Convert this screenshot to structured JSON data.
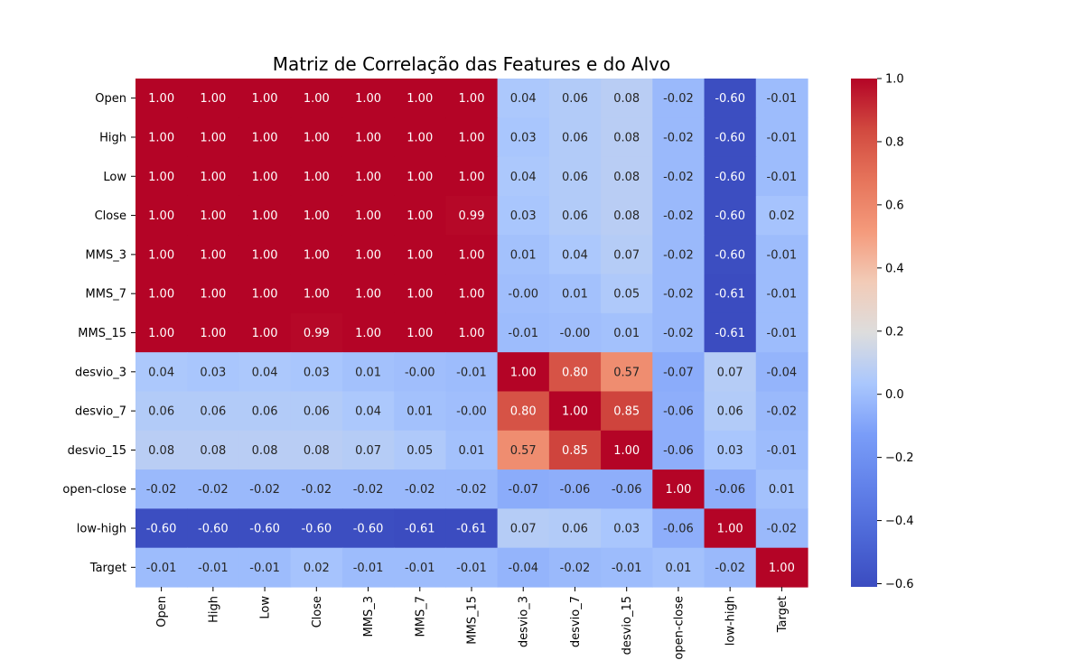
{
  "chart_data": {
    "type": "heatmap",
    "title": "Matriz de Correlação das Features e do Alvo",
    "xlabel": "",
    "ylabel": "",
    "labels": [
      "Open",
      "High",
      "Low",
      "Close",
      "MMS_3",
      "MMS_7",
      "MMS_15",
      "desvio_3",
      "desvio_7",
      "desvio_15",
      "open-close",
      "low-high",
      "Target"
    ],
    "values": [
      [
        1.0,
        1.0,
        1.0,
        1.0,
        1.0,
        1.0,
        1.0,
        0.04,
        0.06,
        0.08,
        -0.02,
        -0.6,
        -0.01
      ],
      [
        1.0,
        1.0,
        1.0,
        1.0,
        1.0,
        1.0,
        1.0,
        0.03,
        0.06,
        0.08,
        -0.02,
        -0.6,
        -0.01
      ],
      [
        1.0,
        1.0,
        1.0,
        1.0,
        1.0,
        1.0,
        1.0,
        0.04,
        0.06,
        0.08,
        -0.02,
        -0.6,
        -0.01
      ],
      [
        1.0,
        1.0,
        1.0,
        1.0,
        1.0,
        1.0,
        0.99,
        0.03,
        0.06,
        0.08,
        -0.02,
        -0.6,
        0.02
      ],
      [
        1.0,
        1.0,
        1.0,
        1.0,
        1.0,
        1.0,
        1.0,
        0.01,
        0.04,
        0.07,
        -0.02,
        -0.6,
        -0.01
      ],
      [
        1.0,
        1.0,
        1.0,
        1.0,
        1.0,
        1.0,
        1.0,
        -0.0,
        0.01,
        0.05,
        -0.02,
        -0.61,
        -0.01
      ],
      [
        1.0,
        1.0,
        1.0,
        0.99,
        1.0,
        1.0,
        1.0,
        -0.01,
        -0.0,
        0.01,
        -0.02,
        -0.61,
        -0.01
      ],
      [
        0.04,
        0.03,
        0.04,
        0.03,
        0.01,
        -0.0,
        -0.01,
        1.0,
        0.8,
        0.57,
        -0.07,
        0.07,
        -0.04
      ],
      [
        0.06,
        0.06,
        0.06,
        0.06,
        0.04,
        0.01,
        -0.0,
        0.8,
        1.0,
        0.85,
        -0.06,
        0.06,
        -0.02
      ],
      [
        0.08,
        0.08,
        0.08,
        0.08,
        0.07,
        0.05,
        0.01,
        0.57,
        0.85,
        1.0,
        -0.06,
        0.03,
        -0.01
      ],
      [
        -0.02,
        -0.02,
        -0.02,
        -0.02,
        -0.02,
        -0.02,
        -0.02,
        -0.07,
        -0.06,
        -0.06,
        1.0,
        -0.06,
        0.01
      ],
      [
        -0.6,
        -0.6,
        -0.6,
        -0.6,
        -0.6,
        -0.61,
        -0.61,
        0.07,
        0.06,
        0.03,
        -0.06,
        1.0,
        -0.02
      ],
      [
        -0.01,
        -0.01,
        -0.01,
        0.02,
        -0.01,
        -0.01,
        -0.01,
        -0.04,
        -0.02,
        -0.01,
        0.01,
        -0.02,
        1.0
      ]
    ],
    "colorbar": {
      "vmin": -0.61,
      "vmax": 1.0,
      "ticks": [
        1.0,
        0.8,
        0.6,
        0.4,
        0.2,
        0.0,
        -0.2,
        -0.4,
        -0.6
      ],
      "tick_labels": [
        "1.0",
        "0.8",
        "0.6",
        "0.4",
        "0.2",
        "0.0",
        "−0.2",
        "−0.4",
        "−0.6"
      ],
      "colormap": "coolwarm"
    },
    "annotation_format": "0.00",
    "grid": false
  }
}
